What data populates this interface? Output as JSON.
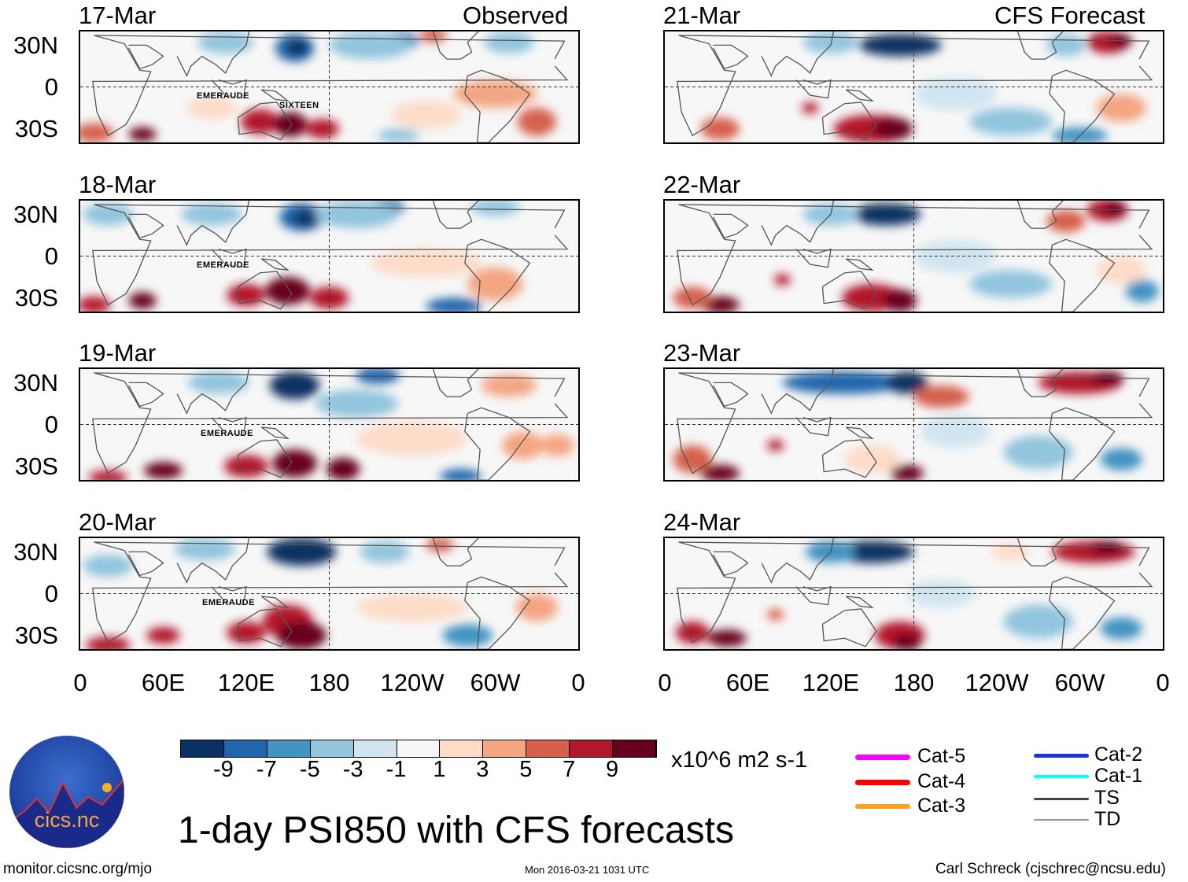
{
  "title": "1-day PSI850 with CFS forecasts",
  "left_header": "Observed",
  "right_header": "CFS Forecast",
  "observed_panels": [
    {
      "date": "17-Mar",
      "storms": [
        "EMERAUDE",
        "SIXTEEN"
      ]
    },
    {
      "date": "18-Mar",
      "storms": [
        "EMERAUDE"
      ]
    },
    {
      "date": "19-Mar",
      "storms": [
        "EMERAUDE"
      ]
    },
    {
      "date": "20-Mar",
      "storms": [
        "EMERAUDE"
      ]
    }
  ],
  "forecast_panels": [
    {
      "date": "21-Mar"
    },
    {
      "date": "22-Mar"
    },
    {
      "date": "23-Mar"
    },
    {
      "date": "24-Mar"
    }
  ],
  "lat_labels": [
    "30N",
    "0",
    "30S"
  ],
  "lon_labels": [
    "0",
    "60E",
    "120E",
    "180",
    "120W",
    "60W",
    "0"
  ],
  "colorbar": {
    "labels": [
      "-9",
      "-7",
      "-5",
      "-3",
      "-1",
      "1",
      "3",
      "5",
      "7",
      "9"
    ],
    "colors": [
      "#0a3162",
      "#2166ac",
      "#4393c3",
      "#92c5de",
      "#d1e5f0",
      "#f7f7f7",
      "#fddbc7",
      "#f4a582",
      "#d6604d",
      "#b2182b",
      "#67001f"
    ],
    "units": "x10^6 m2 s-1"
  },
  "legend": [
    {
      "label": "Cat-5",
      "color": "#ff00ff"
    },
    {
      "label": "Cat-4",
      "color": "#ff0000"
    },
    {
      "label": "Cat-3",
      "color": "#ffa020"
    },
    {
      "label": "Cat-2",
      "color": "#1a33e0"
    },
    {
      "label": "Cat-1",
      "color": "#00ffff"
    },
    {
      "label": "TS",
      "color": "#444444"
    },
    {
      "label": "TD",
      "color": "#999999"
    }
  ],
  "logo_text": "cics.nc",
  "logo_ring_text": "Cooperative Institute for Climate and Satellites",
  "footer": {
    "url": "monitor.cicsnc.org/mjo",
    "timestamp": "Mon 2016-03-21 1031 UTC",
    "author": "Carl Schreck (cjschrec@ncsu.edu)"
  }
}
